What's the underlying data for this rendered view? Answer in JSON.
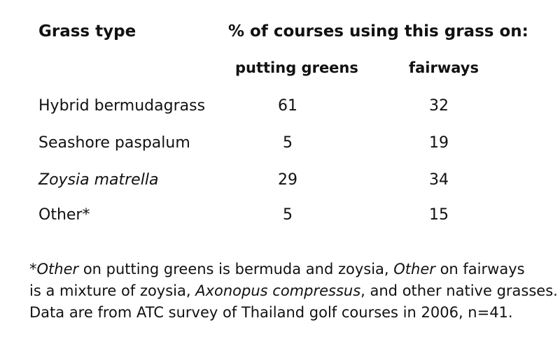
{
  "table": {
    "col_header_grass": "Grass type",
    "col_header_usage": "% of courses using this grass on:",
    "subheader_greens": "putting greens",
    "subheader_fairways": "fairways",
    "rows": [
      {
        "grass": "Hybrid bermudagrass",
        "greens": "61",
        "fairways": "32"
      },
      {
        "grass": "Seashore paspalum",
        "greens": "5",
        "fairways": "19"
      },
      {
        "grass": "Zoysia matrella",
        "greens": "29",
        "fairways": "34"
      },
      {
        "grass": "Other*",
        "greens": "5",
        "fairways": "15"
      }
    ]
  },
  "footnote": {
    "line1_a": "*",
    "line1_b": "Other",
    "line1_c": " on putting greens is bermuda and zoysia, ",
    "line1_d": "Other",
    "line1_e": " on fairways",
    "line2_a": "is a mixture of zoysia, ",
    "line2_b": "Axonopus compressus",
    "line2_c": ", and other native grasses.",
    "line3": "Data are from ATC survey of Thailand golf courses in 2006, n=41."
  }
}
